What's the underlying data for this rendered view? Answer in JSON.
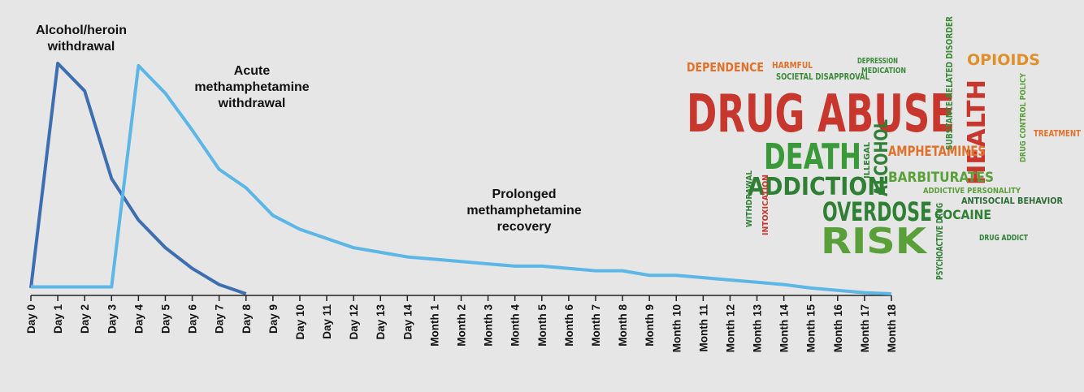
{
  "chart_data": {
    "type": "line",
    "categories": [
      "Day 0",
      "Day 1",
      "Day 2",
      "Day 3",
      "Day 4",
      "Day 5",
      "Day 6",
      "Day 7",
      "Day 8",
      "Day 9",
      "Day 10",
      "Day 11",
      "Day 12",
      "Day 13",
      "Day 14",
      "Month 1",
      "Month 2",
      "Month 3",
      "Month 4",
      "Month 5",
      "Month 6",
      "Month 7",
      "Month 8",
      "Month 9",
      "Month 10",
      "Month 11",
      "Month 12",
      "Month 13",
      "Month 14",
      "Month 15",
      "Month 16",
      "Month 17",
      "Month 18"
    ],
    "ylim": [
      0,
      100
    ],
    "series": [
      {
        "name": "Alcohol/heroin withdrawal",
        "color": "#3d6fb0",
        "values": [
          2.5,
          100,
          88,
          50,
          32,
          20,
          11,
          4,
          0,
          null,
          null,
          null,
          null,
          null,
          null,
          null,
          null,
          null,
          null,
          null,
          null,
          null,
          null,
          null,
          null,
          null,
          null,
          null,
          null,
          null,
          null,
          null,
          null
        ]
      },
      {
        "name": "Acute methamphetamine withdrawal",
        "color": "#5cb6e6",
        "values": [
          3,
          3,
          3,
          3,
          99,
          87,
          71,
          54,
          46,
          34,
          28,
          24,
          20,
          18,
          16,
          15,
          14,
          13,
          12,
          12,
          11,
          10,
          10,
          8,
          8,
          7,
          6,
          5,
          4,
          2.5,
          1.5,
          0.5,
          0
        ]
      }
    ],
    "annotations": [
      "Prolonged methamphetamine recovery"
    ],
    "word_cloud": [
      {
        "text": "DRUG ABUSE",
        "color": "#c8372d"
      },
      {
        "text": "HEALTH",
        "color": "#c8372d"
      },
      {
        "text": "DEPENDENCE",
        "color": "#e0702a"
      },
      {
        "text": "OPIOIDS",
        "color": "#e0902a"
      },
      {
        "text": "DEATH",
        "color": "#3a9a3a"
      },
      {
        "text": "ADDICTION",
        "color": "#2f7f35"
      },
      {
        "text": "ALCOHOL",
        "color": "#2f7f35"
      },
      {
        "text": "AMPHETAMINES",
        "color": "#e0702a"
      },
      {
        "text": "BARBITURATES",
        "color": "#5aa03a"
      },
      {
        "text": "OVERDOSE",
        "color": "#2f7f35"
      },
      {
        "text": "COCAINE",
        "color": "#2f7f35"
      },
      {
        "text": "RISK",
        "color": "#5aa03a"
      },
      {
        "text": "TREATMENT",
        "color": "#e0702a"
      },
      {
        "text": "ANTISOCIAL BEHAVIOR",
        "color": "#2f6b35"
      },
      {
        "text": "ADDICTIVE PERSONALITY",
        "color": "#5aa03a"
      },
      {
        "text": "SUBSTANCE-RELATED DISORDER",
        "color": "#3a8a3a"
      },
      {
        "text": "SOCIETAL DISAPPROVAL",
        "color": "#3a8a3a"
      },
      {
        "text": "DRUG CONTROL POLICY",
        "color": "#5aa03a"
      },
      {
        "text": "PSYCHOACTIVE DRUG",
        "color": "#2f7f35"
      },
      {
        "text": "INTOXICATION",
        "color": "#c8372d"
      },
      {
        "text": "DRUG ADDICT",
        "color": "#2f7f35"
      },
      {
        "text": "HARMFUL",
        "color": "#e0702a"
      },
      {
        "text": "DEPRESSION",
        "color": "#3a8a3a"
      },
      {
        "text": "MEDICATION",
        "color": "#3a8a3a"
      },
      {
        "text": "ILLEGAL",
        "color": "#2f7f35"
      },
      {
        "text": "WITHDRAWAL",
        "color": "#2f7f35"
      }
    ]
  }
}
